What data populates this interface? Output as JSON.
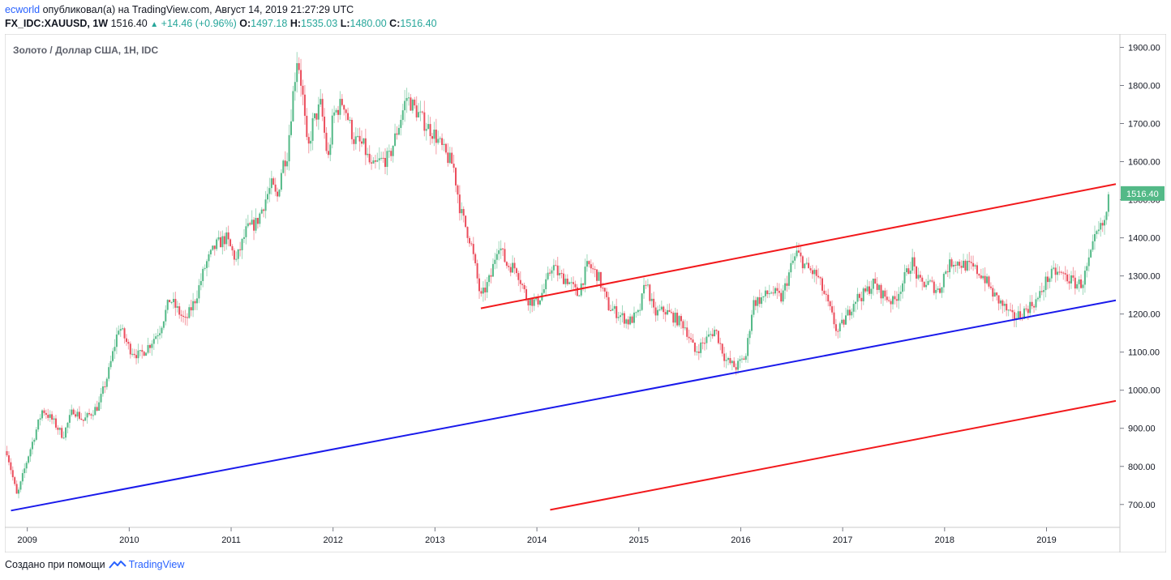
{
  "header": {
    "author": "ecworld",
    "published_text": "опубликовал(а) на TradingView.com, Август 14, 2019 21:27:29 UTC",
    "symbol_line": "FX_IDC:XAUUSD, 1W",
    "last": "1516.40",
    "change": "+14.46 (+0.96%)",
    "open_label": "O:",
    "open": "1497.18",
    "high_label": "H:",
    "high": "1535.03",
    "low_label": "L:",
    "low": "1480.00",
    "close_label": "C:",
    "close": "1516.40"
  },
  "footer": {
    "created_with": "Создано при помощи",
    "brand": "TradingView"
  },
  "colors": {
    "up": "#53b987",
    "down": "#eb4d5c",
    "channel_red": "#f2191c",
    "channel_blue": "#1a1aeb",
    "price_tag": "#53b987"
  },
  "chart_data": {
    "type": "candlestick",
    "title": "Золото / Доллар США, 1Н, IDC",
    "xlabel": "",
    "ylabel": "",
    "x_range": [
      2008.78,
      2019.72
    ],
    "ylim": [
      640,
      1935
    ],
    "x_ticks": [
      "2009",
      "2010",
      "2011",
      "2012",
      "2013",
      "2014",
      "2015",
      "2016",
      "2017",
      "2018",
      "2019"
    ],
    "y_ticks": [
      "700.00",
      "800.00",
      "900.00",
      "1000.00",
      "1100.00",
      "1200.00",
      "1300.00",
      "1400.00",
      "1500.00",
      "1600.00",
      "1700.00",
      "1800.00",
      "1900.00"
    ],
    "last_price": "1516.40",
    "close_path": [
      [
        2008.8,
        840
      ],
      [
        2008.9,
        720
      ],
      [
        2009.0,
        820
      ],
      [
        2009.15,
        950
      ],
      [
        2009.25,
        920
      ],
      [
        2009.35,
        880
      ],
      [
        2009.45,
        950
      ],
      [
        2009.55,
        920
      ],
      [
        2009.7,
        960
      ],
      [
        2009.8,
        1050
      ],
      [
        2009.9,
        1170
      ],
      [
        2010.0,
        1110
      ],
      [
        2010.1,
        1090
      ],
      [
        2010.2,
        1120
      ],
      [
        2010.3,
        1160
      ],
      [
        2010.4,
        1240
      ],
      [
        2010.5,
        1200
      ],
      [
        2010.55,
        1180
      ],
      [
        2010.65,
        1240
      ],
      [
        2010.75,
        1330
      ],
      [
        2010.85,
        1380
      ],
      [
        2010.95,
        1400
      ],
      [
        2011.05,
        1340
      ],
      [
        2011.15,
        1420
      ],
      [
        2011.25,
        1440
      ],
      [
        2011.35,
        1510
      ],
      [
        2011.4,
        1540
      ],
      [
        2011.45,
        1500
      ],
      [
        2011.5,
        1590
      ],
      [
        2011.55,
        1620
      ],
      [
        2011.6,
        1760
      ],
      [
        2011.65,
        1880
      ],
      [
        2011.7,
        1780
      ],
      [
        2011.75,
        1620
      ],
      [
        2011.8,
        1700
      ],
      [
        2011.88,
        1750
      ],
      [
        2011.95,
        1600
      ],
      [
        2012.0,
        1720
      ],
      [
        2012.1,
        1760
      ],
      [
        2012.2,
        1660
      ],
      [
        2012.3,
        1640
      ],
      [
        2012.38,
        1580
      ],
      [
        2012.45,
        1600
      ],
      [
        2012.55,
        1610
      ],
      [
        2012.65,
        1700
      ],
      [
        2012.72,
        1770
      ],
      [
        2012.8,
        1740
      ],
      [
        2012.9,
        1700
      ],
      [
        2013.0,
        1670
      ],
      [
        2013.1,
        1620
      ],
      [
        2013.18,
        1590
      ],
      [
        2013.25,
        1470
      ],
      [
        2013.35,
        1390
      ],
      [
        2013.45,
        1240
      ],
      [
        2013.55,
        1300
      ],
      [
        2013.62,
        1390
      ],
      [
        2013.7,
        1330
      ],
      [
        2013.8,
        1320
      ],
      [
        2013.9,
        1240
      ],
      [
        2014.0,
        1230
      ],
      [
        2014.08,
        1270
      ],
      [
        2014.15,
        1330
      ],
      [
        2014.22,
        1300
      ],
      [
        2014.3,
        1290
      ],
      [
        2014.4,
        1250
      ],
      [
        2014.5,
        1330
      ],
      [
        2014.6,
        1300
      ],
      [
        2014.7,
        1220
      ],
      [
        2014.8,
        1200
      ],
      [
        2014.9,
        1180
      ],
      [
        2015.0,
        1200
      ],
      [
        2015.07,
        1290
      ],
      [
        2015.15,
        1200
      ],
      [
        2015.25,
        1210
      ],
      [
        2015.35,
        1190
      ],
      [
        2015.45,
        1170
      ],
      [
        2015.55,
        1100
      ],
      [
        2015.65,
        1130
      ],
      [
        2015.75,
        1160
      ],
      [
        2015.85,
        1080
      ],
      [
        2015.95,
        1060
      ],
      [
        2016.05,
        1090
      ],
      [
        2016.12,
        1230
      ],
      [
        2016.2,
        1240
      ],
      [
        2016.3,
        1260
      ],
      [
        2016.4,
        1240
      ],
      [
        2016.5,
        1330
      ],
      [
        2016.55,
        1360
      ],
      [
        2016.65,
        1320
      ],
      [
        2016.75,
        1300
      ],
      [
        2016.85,
        1230
      ],
      [
        2016.95,
        1150
      ],
      [
        2017.05,
        1200
      ],
      [
        2017.12,
        1240
      ],
      [
        2017.2,
        1250
      ],
      [
        2017.3,
        1280
      ],
      [
        2017.4,
        1250
      ],
      [
        2017.5,
        1230
      ],
      [
        2017.6,
        1290
      ],
      [
        2017.68,
        1340
      ],
      [
        2017.75,
        1280
      ],
      [
        2017.85,
        1280
      ],
      [
        2017.95,
        1260
      ],
      [
        2018.0,
        1310
      ],
      [
        2018.08,
        1340
      ],
      [
        2018.18,
        1330
      ],
      [
        2018.28,
        1320
      ],
      [
        2018.38,
        1300
      ],
      [
        2018.48,
        1250
      ],
      [
        2018.58,
        1220
      ],
      [
        2018.66,
        1190
      ],
      [
        2018.75,
        1200
      ],
      [
        2018.83,
        1220
      ],
      [
        2018.92,
        1240
      ],
      [
        2019.0,
        1290
      ],
      [
        2019.08,
        1310
      ],
      [
        2019.18,
        1300
      ],
      [
        2019.28,
        1280
      ],
      [
        2019.35,
        1280
      ],
      [
        2019.42,
        1340
      ],
      [
        2019.48,
        1400
      ],
      [
        2019.52,
        1420
      ],
      [
        2019.57,
        1440
      ],
      [
        2019.61,
        1500
      ],
      [
        2019.62,
        1516.4
      ]
    ],
    "trend_lines": [
      {
        "color": "#f2191c",
        "from": [
          2013.45,
          1215
        ],
        "to": [
          2019.68,
          1541
        ]
      },
      {
        "color": "#1a1aeb",
        "from": [
          2008.84,
          684
        ],
        "to": [
          2019.68,
          1236
        ]
      },
      {
        "color": "#f2191c",
        "from": [
          2014.13,
          686
        ],
        "to": [
          2019.68,
          972
        ]
      }
    ]
  }
}
